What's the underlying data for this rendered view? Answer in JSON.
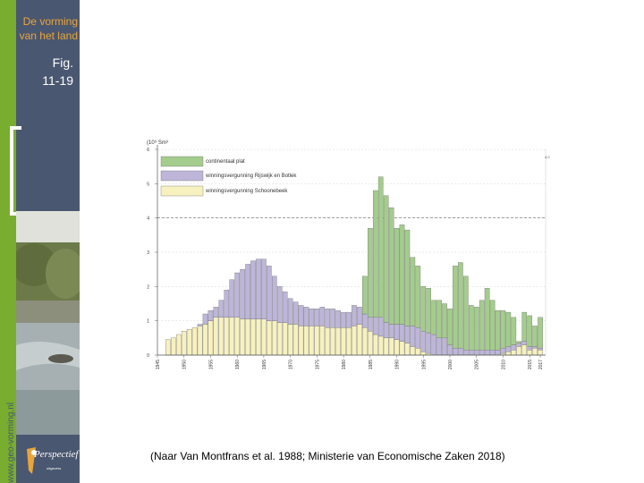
{
  "slide": {
    "deck_title_line1": "De vorming",
    "deck_title_line2": "van het land",
    "fig_line1": "Fig.",
    "fig_line2": "11-19",
    "website": "www.geo-vorming.nl",
    "logo_text": "Perspectief",
    "logo_subtitle": "uitgevers",
    "caption": "(Naar  Van Montfrans et al. 1988; Ministerie van Economische Zaken 2018)"
  },
  "colors": {
    "continental": "#a4cc8c",
    "rijswijk": "#bdb6d9",
    "schoonebeek": "#f7f1bf",
    "panel": "#4a5770",
    "accent": "#e9a53a",
    "green_strip": "#78ad2f"
  },
  "chart_data": {
    "type": "bar",
    "stacked": true,
    "ylabel": "(10⁹ Sm³",
    "ylim": [
      0,
      6
    ],
    "yticks": [
      "0",
      "1",
      "2",
      "3",
      "4",
      "5",
      "6"
    ],
    "reference_line_y": 4,
    "end_marker": "4,0",
    "year_range": [
      1945,
      2017
    ],
    "xtick_labels": [
      {
        "year": 1945,
        "label": "1945"
      },
      {
        "year": 1950,
        "label": "1950"
      },
      {
        "year": 1955,
        "label": "1955"
      },
      {
        "year": 1960,
        "label": "1960"
      },
      {
        "year": 1965,
        "label": "1965"
      },
      {
        "year": 1970,
        "label": "1970"
      },
      {
        "year": 1975,
        "label": "1975"
      },
      {
        "year": 1980,
        "label": "1980"
      },
      {
        "year": 1985,
        "label": "1985"
      },
      {
        "year": 1990,
        "label": "1990"
      },
      {
        "year": 1995,
        "label": "1995"
      },
      {
        "year": 2000,
        "label": "2000"
      },
      {
        "year": 2005,
        "label": "2005"
      },
      {
        "year": 2010,
        "label": "2010"
      },
      {
        "year": 2015,
        "label": "2015"
      },
      {
        "year": 2017,
        "label": "2017"
      }
    ],
    "series": [
      {
        "name": "continentaal plat",
        "color_key": "continental"
      },
      {
        "name": "winningsvergunning Rijswijk en Botlek",
        "color_key": "rijswijk"
      },
      {
        "name": "winningsvergunning Schoonebeek",
        "color_key": "schoonebeek"
      }
    ],
    "bars": [
      {
        "year": 1947,
        "schoonebeek": 0.45,
        "rijswijk": 0.0,
        "continental": 0.0
      },
      {
        "year": 1948,
        "schoonebeek": 0.5,
        "rijswijk": 0.0,
        "continental": 0.0
      },
      {
        "year": 1949,
        "schoonebeek": 0.6,
        "rijswijk": 0.0,
        "continental": 0.0
      },
      {
        "year": 1950,
        "schoonebeek": 0.7,
        "rijswijk": 0.0,
        "continental": 0.0
      },
      {
        "year": 1951,
        "schoonebeek": 0.75,
        "rijswijk": 0.0,
        "continental": 0.0
      },
      {
        "year": 1952,
        "schoonebeek": 0.8,
        "rijswijk": 0.0,
        "continental": 0.0
      },
      {
        "year": 1953,
        "schoonebeek": 0.85,
        "rijswijk": 0.05,
        "continental": 0.0
      },
      {
        "year": 1954,
        "schoonebeek": 0.9,
        "rijswijk": 0.3,
        "continental": 0.0
      },
      {
        "year": 1955,
        "schoonebeek": 1.0,
        "rijswijk": 0.3,
        "continental": 0.0
      },
      {
        "year": 1956,
        "schoonebeek": 1.1,
        "rijswijk": 0.3,
        "continental": 0.0
      },
      {
        "year": 1957,
        "schoonebeek": 1.1,
        "rijswijk": 0.5,
        "continental": 0.0
      },
      {
        "year": 1958,
        "schoonebeek": 1.1,
        "rijswijk": 0.8,
        "continental": 0.0
      },
      {
        "year": 1959,
        "schoonebeek": 1.1,
        "rijswijk": 1.1,
        "continental": 0.0
      },
      {
        "year": 1960,
        "schoonebeek": 1.1,
        "rijswijk": 1.3,
        "continental": 0.0
      },
      {
        "year": 1961,
        "schoonebeek": 1.05,
        "rijswijk": 1.45,
        "continental": 0.0
      },
      {
        "year": 1962,
        "schoonebeek": 1.05,
        "rijswijk": 1.6,
        "continental": 0.0
      },
      {
        "year": 1963,
        "schoonebeek": 1.05,
        "rijswijk": 1.7,
        "continental": 0.0
      },
      {
        "year": 1964,
        "schoonebeek": 1.05,
        "rijswijk": 1.75,
        "continental": 0.0
      },
      {
        "year": 1965,
        "schoonebeek": 1.05,
        "rijswijk": 1.75,
        "continental": 0.0
      },
      {
        "year": 1966,
        "schoonebeek": 1.0,
        "rijswijk": 1.6,
        "continental": 0.0
      },
      {
        "year": 1967,
        "schoonebeek": 1.0,
        "rijswijk": 1.3,
        "continental": 0.0
      },
      {
        "year": 1968,
        "schoonebeek": 0.95,
        "rijswijk": 1.05,
        "continental": 0.0
      },
      {
        "year": 1969,
        "schoonebeek": 0.95,
        "rijswijk": 0.9,
        "continental": 0.0
      },
      {
        "year": 1970,
        "schoonebeek": 0.9,
        "rijswijk": 0.75,
        "continental": 0.0
      },
      {
        "year": 1971,
        "schoonebeek": 0.9,
        "rijswijk": 0.65,
        "continental": 0.0
      },
      {
        "year": 1972,
        "schoonebeek": 0.85,
        "rijswijk": 0.6,
        "continental": 0.0
      },
      {
        "year": 1973,
        "schoonebeek": 0.85,
        "rijswijk": 0.55,
        "continental": 0.0
      },
      {
        "year": 1974,
        "schoonebeek": 0.85,
        "rijswijk": 0.5,
        "continental": 0.0
      },
      {
        "year": 1975,
        "schoonebeek": 0.85,
        "rijswijk": 0.5,
        "continental": 0.0
      },
      {
        "year": 1976,
        "schoonebeek": 0.85,
        "rijswijk": 0.55,
        "continental": 0.0
      },
      {
        "year": 1977,
        "schoonebeek": 0.8,
        "rijswijk": 0.55,
        "continental": 0.0
      },
      {
        "year": 1978,
        "schoonebeek": 0.8,
        "rijswijk": 0.55,
        "continental": 0.0
      },
      {
        "year": 1979,
        "schoonebeek": 0.8,
        "rijswijk": 0.5,
        "continental": 0.0
      },
      {
        "year": 1980,
        "schoonebeek": 0.8,
        "rijswijk": 0.45,
        "continental": 0.0
      },
      {
        "year": 1981,
        "schoonebeek": 0.8,
        "rijswijk": 0.45,
        "continental": 0.0
      },
      {
        "year": 1982,
        "schoonebeek": 0.85,
        "rijswijk": 0.6,
        "continental": 0.0
      },
      {
        "year": 1983,
        "schoonebeek": 0.9,
        "rijswijk": 0.5,
        "continental": 0.0
      },
      {
        "year": 1984,
        "schoonebeek": 0.8,
        "rijswijk": 0.4,
        "continental": 1.1
      },
      {
        "year": 1985,
        "schoonebeek": 0.7,
        "rijswijk": 0.4,
        "continental": 2.6
      },
      {
        "year": 1986,
        "schoonebeek": 0.6,
        "rijswijk": 0.5,
        "continental": 3.7
      },
      {
        "year": 1987,
        "schoonebeek": 0.55,
        "rijswijk": 0.55,
        "continental": 4.1
      },
      {
        "year": 1988,
        "schoonebeek": 0.5,
        "rijswijk": 0.45,
        "continental": 3.7
      },
      {
        "year": 1989,
        "schoonebeek": 0.5,
        "rijswijk": 0.4,
        "continental": 3.4
      },
      {
        "year": 1990,
        "schoonebeek": 0.45,
        "rijswijk": 0.45,
        "continental": 2.8
      },
      {
        "year": 1991,
        "schoonebeek": 0.4,
        "rijswijk": 0.5,
        "continental": 2.9
      },
      {
        "year": 1992,
        "schoonebeek": 0.35,
        "rijswijk": 0.5,
        "continental": 2.8
      },
      {
        "year": 1993,
        "schoonebeek": 0.25,
        "rijswijk": 0.6,
        "continental": 2.0
      },
      {
        "year": 1994,
        "schoonebeek": 0.2,
        "rijswijk": 0.6,
        "continental": 1.8
      },
      {
        "year": 1995,
        "schoonebeek": 0.1,
        "rijswijk": 0.6,
        "continental": 1.3
      },
      {
        "year": 1996,
        "schoonebeek": 0.05,
        "rijswijk": 0.6,
        "continental": 1.3
      },
      {
        "year": 1997,
        "schoonebeek": 0.0,
        "rijswijk": 0.6,
        "continental": 1.0
      },
      {
        "year": 1998,
        "schoonebeek": 0.0,
        "rijswijk": 0.5,
        "continental": 1.1
      },
      {
        "year": 1999,
        "schoonebeek": 0.0,
        "rijswijk": 0.5,
        "continental": 1.0
      },
      {
        "year": 2000,
        "schoonebeek": 0.0,
        "rijswijk": 0.3,
        "continental": 1.05
      },
      {
        "year": 2001,
        "schoonebeek": 0.0,
        "rijswijk": 0.2,
        "continental": 2.4
      },
      {
        "year": 2002,
        "schoonebeek": 0.0,
        "rijswijk": 0.2,
        "continental": 2.5
      },
      {
        "year": 2003,
        "schoonebeek": 0.0,
        "rijswijk": 0.15,
        "continental": 2.15
      },
      {
        "year": 2004,
        "schoonebeek": 0.0,
        "rijswijk": 0.15,
        "continental": 1.3
      },
      {
        "year": 2005,
        "schoonebeek": 0.0,
        "rijswijk": 0.15,
        "continental": 1.25
      },
      {
        "year": 2006,
        "schoonebeek": 0.0,
        "rijswijk": 0.15,
        "continental": 1.45
      },
      {
        "year": 2007,
        "schoonebeek": 0.0,
        "rijswijk": 0.15,
        "continental": 1.8
      },
      {
        "year": 2008,
        "schoonebeek": 0.0,
        "rijswijk": 0.15,
        "continental": 1.45
      },
      {
        "year": 2009,
        "schoonebeek": 0.0,
        "rijswijk": 0.15,
        "continental": 1.15
      },
      {
        "year": 2010,
        "schoonebeek": 0.05,
        "rijswijk": 0.15,
        "continental": 1.1
      },
      {
        "year": 2011,
        "schoonebeek": 0.1,
        "rijswijk": 0.15,
        "continental": 1.0
      },
      {
        "year": 2012,
        "schoonebeek": 0.15,
        "rijswijk": 0.15,
        "continental": 0.8
      },
      {
        "year": 2013,
        "schoonebeek": 0.25,
        "rijswijk": 0.1,
        "continental": 0.05
      },
      {
        "year": 2014,
        "schoonebeek": 0.3,
        "rijswijk": 0.1,
        "continental": 0.85
      },
      {
        "year": 2015,
        "schoonebeek": 0.15,
        "rijswijk": 0.1,
        "continental": 0.9
      },
      {
        "year": 2016,
        "schoonebeek": 0.2,
        "rijswijk": 0.05,
        "continental": 0.6
      },
      {
        "year": 2017,
        "schoonebeek": 0.15,
        "rijswijk": 0.05,
        "continental": 0.9
      }
    ]
  }
}
